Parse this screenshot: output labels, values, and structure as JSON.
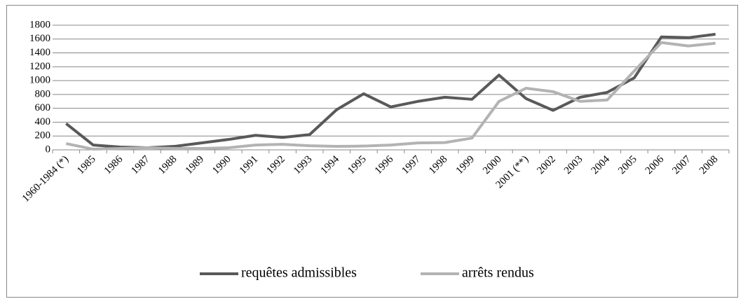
{
  "chart_data": {
    "type": "line",
    "categories": [
      "1960-1984 (*)",
      "1985",
      "1986",
      "1987",
      "1988",
      "1989",
      "1990",
      "1991",
      "1992",
      "1993",
      "1994",
      "1995",
      "1996",
      "1997",
      "1998",
      "1999",
      "2000",
      "2001 (**)",
      "2002",
      "2003",
      "2004",
      "2005",
      "2006",
      "2007",
      "2008"
    ],
    "series": [
      {
        "name": "requêtes admissibles",
        "color": "#595959",
        "values": [
          380,
          70,
          40,
          30,
          50,
          100,
          150,
          210,
          180,
          220,
          580,
          810,
          620,
          700,
          760,
          730,
          1080,
          740,
          570,
          760,
          830,
          1040,
          1630,
          1620,
          1670
        ]
      },
      {
        "name": "arrêts rendus",
        "color": "#b3b3b3",
        "values": [
          90,
          10,
          20,
          30,
          20,
          20,
          30,
          70,
          80,
          60,
          50,
          55,
          70,
          100,
          105,
          170,
          700,
          890,
          840,
          700,
          720,
          1140,
          1550,
          1500,
          1540
        ]
      }
    ],
    "ylim": [
      0,
      1800
    ],
    "yticks": [
      0,
      200,
      400,
      600,
      800,
      1000,
      1200,
      1400,
      1600,
      1800
    ],
    "grid": true,
    "legend": "bottom"
  }
}
